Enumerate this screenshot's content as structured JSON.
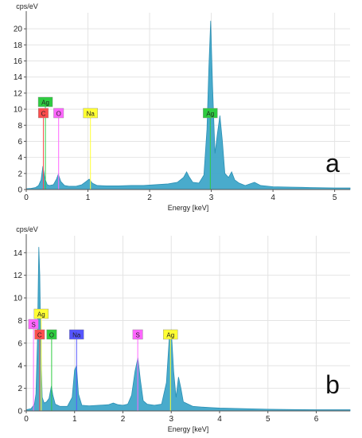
{
  "chart_data": [
    {
      "type": "area",
      "panel_label": "a",
      "ylabel": "cps/eV",
      "xlabel": "Energy [keV]",
      "xlim": [
        0,
        5.25
      ],
      "ylim": [
        0,
        22
      ],
      "x_ticks": [
        0,
        1,
        2,
        3,
        4,
        5
      ],
      "y_ticks": [
        0,
        2,
        4,
        6,
        8,
        10,
        12,
        14,
        16,
        18,
        20
      ],
      "grid": true,
      "series": [
        {
          "x": [
            0,
            0.08,
            0.15,
            0.2,
            0.24,
            0.27,
            0.3,
            0.34,
            0.38,
            0.44,
            0.49,
            0.52,
            0.56,
            0.62,
            0.7,
            0.8,
            0.9,
            0.97,
            1.02,
            1.07,
            1.15,
            1.3,
            1.5,
            1.7,
            1.9,
            2.1,
            2.3,
            2.45,
            2.55,
            2.6,
            2.64,
            2.7,
            2.8,
            2.88,
            2.93,
            2.96,
            2.99,
            3.02,
            3.06,
            3.1,
            3.14,
            3.18,
            3.22,
            3.28,
            3.33,
            3.38,
            3.45,
            3.55,
            3.7,
            3.8,
            4.0,
            4.3,
            4.6,
            5.0,
            5.25
          ],
          "y": [
            0.1,
            0.15,
            0.25,
            0.5,
            1.2,
            2.9,
            1.4,
            0.6,
            0.5,
            0.6,
            1.3,
            1.9,
            1.0,
            0.5,
            0.4,
            0.4,
            0.6,
            1.0,
            1.3,
            0.8,
            0.5,
            0.45,
            0.45,
            0.5,
            0.5,
            0.6,
            0.7,
            0.9,
            1.5,
            2.2,
            1.6,
            0.9,
            0.8,
            1.8,
            7.5,
            15.0,
            21.0,
            13.0,
            4.5,
            7.0,
            9.2,
            6.0,
            2.0,
            1.5,
            2.2,
            1.2,
            0.8,
            0.5,
            0.9,
            0.5,
            0.35,
            0.3,
            0.25,
            0.2,
            0.2
          ]
        }
      ],
      "element_labels": [
        {
          "text": "Ag",
          "energy": 0.31,
          "color": "#2ecc40",
          "row": 0
        },
        {
          "text": "C",
          "energy": 0.277,
          "color": "#ff4d4d",
          "row": 1
        },
        {
          "text": "O",
          "energy": 0.525,
          "color": "#ff66ff",
          "row": 1
        },
        {
          "text": "Na",
          "energy": 1.041,
          "color": "#ffff33",
          "row": 1
        },
        {
          "text": "Ag",
          "energy": 2.984,
          "color": "#2ecc40",
          "row": 1
        }
      ]
    },
    {
      "type": "area",
      "panel_label": "b",
      "ylabel": "cps/eV",
      "xlabel": "Energy [keV]",
      "xlim": [
        0,
        6.7
      ],
      "ylim": [
        0,
        15.5
      ],
      "x_ticks": [
        0,
        1,
        2,
        3,
        4,
        5,
        6
      ],
      "y_ticks": [
        0,
        2,
        4,
        6,
        8,
        10,
        12,
        14
      ],
      "grid": true,
      "series": [
        {
          "x": [
            0,
            0.1,
            0.17,
            0.2,
            0.23,
            0.26,
            0.28,
            0.3,
            0.33,
            0.37,
            0.42,
            0.47,
            0.52,
            0.55,
            0.6,
            0.7,
            0.85,
            0.95,
            1.0,
            1.04,
            1.08,
            1.15,
            1.3,
            1.5,
            1.7,
            1.8,
            1.9,
            2.0,
            2.1,
            2.18,
            2.25,
            2.31,
            2.36,
            2.42,
            2.5,
            2.65,
            2.8,
            2.9,
            2.96,
            3.0,
            3.05,
            3.1,
            3.15,
            3.2,
            3.25,
            3.35,
            3.45,
            3.6,
            3.8,
            4.0,
            4.5,
            5.0,
            5.5,
            6.0,
            6.7
          ],
          "y": [
            0.1,
            0.2,
            0.6,
            1.5,
            6.0,
            14.5,
            12.0,
            6.0,
            1.2,
            0.7,
            0.8,
            1.1,
            2.2,
            1.4,
            0.6,
            0.4,
            0.4,
            1.2,
            3.6,
            4.0,
            1.5,
            0.5,
            0.45,
            0.5,
            0.55,
            0.7,
            0.55,
            0.5,
            0.6,
            1.4,
            3.5,
            4.7,
            2.8,
            0.9,
            0.6,
            0.5,
            0.6,
            2.5,
            6.5,
            7.2,
            3.5,
            1.2,
            3.0,
            2.0,
            0.8,
            0.6,
            0.4,
            0.35,
            0.3,
            0.25,
            0.2,
            0.15,
            0.12,
            0.1,
            0.1
          ]
        }
      ],
      "element_labels": [
        {
          "text": "Ag",
          "energy": 0.31,
          "color": "#ffff33",
          "row": 0
        },
        {
          "text": "S",
          "energy": 0.15,
          "color": "#ff66ff",
          "row": 1
        },
        {
          "text": "C",
          "energy": 0.277,
          "color": "#ff4d4d",
          "row": 2
        },
        {
          "text": "O",
          "energy": 0.525,
          "color": "#2ecc40",
          "row": 2
        },
        {
          "text": "Na",
          "energy": 1.041,
          "color": "#5555ff",
          "row": 2
        },
        {
          "text": "S",
          "energy": 2.307,
          "color": "#ff66ff",
          "row": 2
        },
        {
          "text": "Ag",
          "energy": 2.984,
          "color": "#ffff33",
          "row": 2
        }
      ]
    }
  ]
}
